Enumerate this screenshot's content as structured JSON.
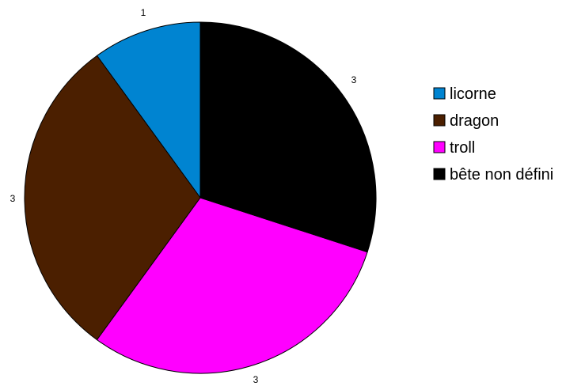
{
  "chart_data": {
    "type": "pie",
    "title": "",
    "categories": [
      "licorne",
      "dragon",
      "troll",
      "bête non défini"
    ],
    "values": [
      1,
      3,
      3,
      3
    ],
    "colors": [
      "#0084d1",
      "#4b1f00",
      "#ff00ff",
      "#000000"
    ],
    "start_direction": "top",
    "order": "counter-clockwise",
    "data_labels": [
      "1",
      "3",
      "3",
      "3"
    ],
    "legend_placement": "right"
  }
}
